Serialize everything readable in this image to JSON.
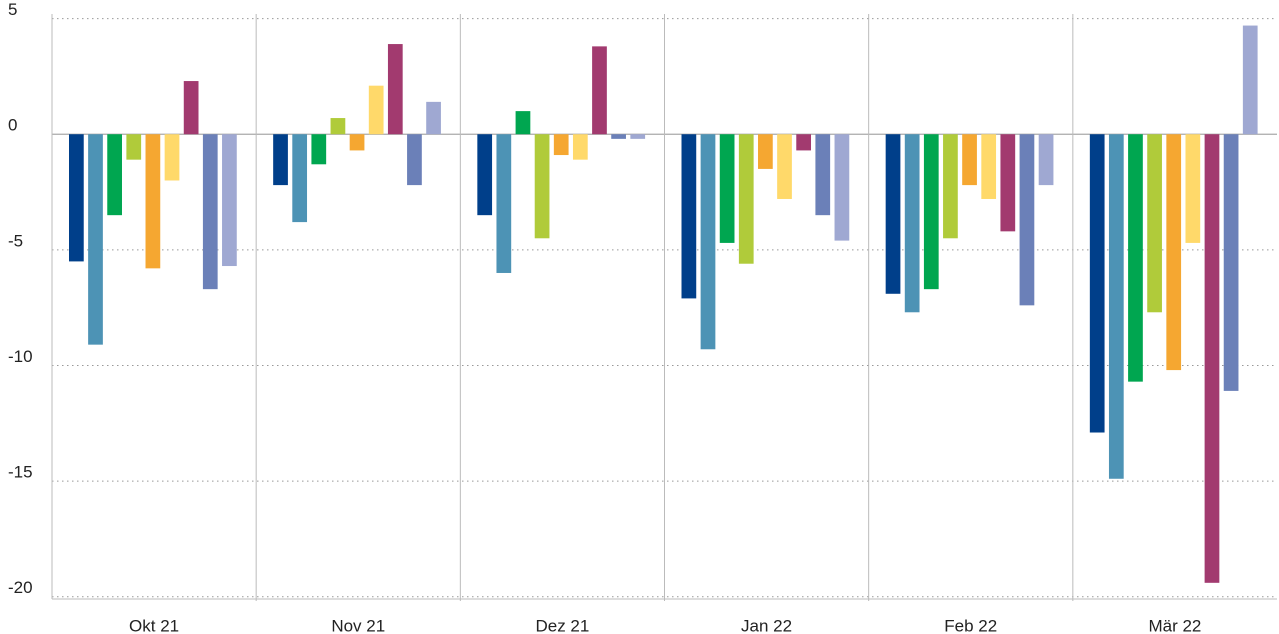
{
  "chart_data": {
    "type": "bar",
    "categories": [
      "Okt 21",
      "Nov 21",
      "Dez 21",
      "Jan 22",
      "Feb 22",
      "Mär 22"
    ],
    "series": [
      {
        "color": "#003f8a",
        "values": [
          -5.5,
          -2.2,
          -3.5,
          -7.1,
          -6.9,
          -12.9
        ]
      },
      {
        "color": "#4d93b5",
        "values": [
          -9.1,
          -3.8,
          -6.0,
          -9.3,
          -7.7,
          -14.9
        ]
      },
      {
        "color": "#00a650",
        "values": [
          -3.5,
          -1.3,
          1.0,
          -4.7,
          -6.7,
          -10.7
        ]
      },
      {
        "color": "#b0cb3a",
        "values": [
          -1.1,
          0.7,
          -4.5,
          -5.6,
          -4.5,
          -7.7
        ]
      },
      {
        "color": "#f5a731",
        "values": [
          -5.8,
          -0.7,
          -0.9,
          -1.5,
          -2.2,
          -10.2
        ]
      },
      {
        "color": "#ffd96a",
        "values": [
          -2.0,
          2.1,
          -1.1,
          -2.8,
          -2.8,
          -4.7
        ]
      },
      {
        "color": "#a23a6f",
        "values": [
          2.3,
          3.9,
          3.8,
          -0.7,
          -4.2,
          -19.4
        ]
      },
      {
        "color": "#6b80b8",
        "values": [
          -6.7,
          -2.2,
          -0.2,
          -3.5,
          -7.4,
          -11.1
        ]
      },
      {
        "color": "#9fa8d2",
        "values": [
          -5.7,
          1.4,
          -0.2,
          -4.6,
          -2.2,
          4.7
        ]
      }
    ],
    "ylim": [
      -20.1,
      5.2
    ],
    "yticks": [
      5,
      0,
      -5,
      -10,
      -15,
      -20
    ],
    "grid": true
  }
}
